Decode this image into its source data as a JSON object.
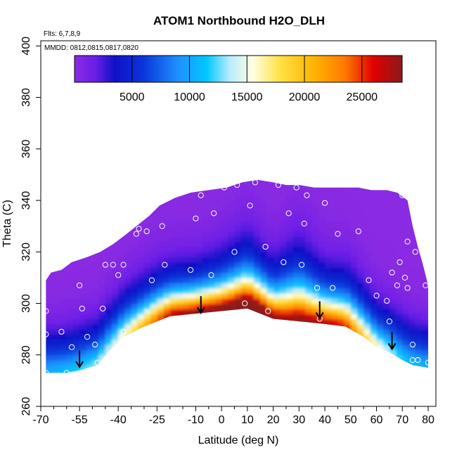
{
  "chart_data": {
    "type": "heatmap",
    "title": "ATOM1 Northbound H2O_DLH",
    "xlabel": "Latitude (deg N)",
    "ylabel": "Theta (C)",
    "xlim": [
      -70,
      83
    ],
    "ylim": [
      260,
      402
    ],
    "x_ticks": [
      -70,
      -55,
      -40,
      -25,
      -10,
      0,
      10,
      20,
      30,
      40,
      50,
      60,
      70,
      80
    ],
    "x_ticks_minor": [
      -65,
      -60,
      -50,
      -45,
      -35,
      -30,
      -20,
      -15,
      -5,
      5,
      15,
      25,
      35,
      45,
      55,
      65,
      75
    ],
    "y_ticks": [
      260,
      280,
      300,
      320,
      340,
      360,
      380,
      400
    ],
    "annotations": [
      "Flts: 6,7,8,9",
      "MMDD: 0812,0815,0817,0820"
    ],
    "colorbar": {
      "range": [
        0,
        28500
      ],
      "ticks": [
        5000,
        10000,
        15000,
        20000,
        25000
      ],
      "stops": [
        {
          "v": 0,
          "c": "#8a2be2"
        },
        {
          "v": 1800,
          "c": "#6a1ee6"
        },
        {
          "v": 3500,
          "c": "#1010c8"
        },
        {
          "v": 6000,
          "c": "#0a36d8"
        },
        {
          "v": 9000,
          "c": "#1e90ff"
        },
        {
          "v": 11500,
          "c": "#00c8ff"
        },
        {
          "v": 13500,
          "c": "#b8ecff"
        },
        {
          "v": 15500,
          "c": "#ffffe0"
        },
        {
          "v": 18000,
          "c": "#ffe040"
        },
        {
          "v": 21000,
          "c": "#ffb000"
        },
        {
          "v": 23500,
          "c": "#ff7a00"
        },
        {
          "v": 26000,
          "c": "#e00000"
        },
        {
          "v": 28500,
          "c": "#8b1a1a"
        }
      ]
    },
    "coverage": {
      "upper": [
        [
          -68,
          309
        ],
        [
          -66,
          312
        ],
        [
          -62,
          313
        ],
        [
          -58,
          316
        ],
        [
          -52,
          318
        ],
        [
          -47,
          320
        ],
        [
          -42,
          323
        ],
        [
          -38,
          326
        ],
        [
          -33,
          330
        ],
        [
          -28,
          334
        ],
        [
          -24,
          338
        ],
        [
          -18,
          341
        ],
        [
          -12,
          343
        ],
        [
          -5,
          344
        ],
        [
          2,
          345
        ],
        [
          8,
          347
        ],
        [
          14,
          348
        ],
        [
          20,
          347
        ],
        [
          25,
          346
        ],
        [
          30,
          346
        ],
        [
          36,
          345
        ],
        [
          42,
          345
        ],
        [
          48,
          345
        ],
        [
          53,
          345
        ],
        [
          58,
          344
        ],
        [
          64,
          344
        ],
        [
          68,
          343
        ],
        [
          72,
          340
        ],
        [
          74,
          330
        ],
        [
          76,
          322
        ],
        [
          78,
          315
        ],
        [
          80,
          307
        ]
      ],
      "lower": [
        [
          -68,
          273
        ],
        [
          -60,
          273
        ],
        [
          -55,
          274
        ],
        [
          -48,
          276
        ],
        [
          -44,
          281
        ],
        [
          -38,
          287
        ],
        [
          -30,
          291
        ],
        [
          -20,
          295
        ],
        [
          -10,
          296
        ],
        [
          0,
          297
        ],
        [
          10,
          298
        ],
        [
          20,
          294
        ],
        [
          30,
          293
        ],
        [
          40,
          292
        ],
        [
          48,
          291
        ],
        [
          55,
          287
        ],
        [
          60,
          283
        ],
        [
          65,
          281
        ],
        [
          70,
          278
        ],
        [
          74,
          276
        ],
        [
          80,
          275
        ]
      ]
    },
    "points": [
      [
        -68,
        297
      ],
      [
        -68,
        288
      ],
      [
        -68,
        273
      ],
      [
        -62,
        289
      ],
      [
        -60,
        273
      ],
      [
        -58,
        283
      ],
      [
        -55,
        307
      ],
      [
        -54,
        298
      ],
      [
        -52,
        287
      ],
      [
        -49,
        284
      ],
      [
        -48,
        277
      ],
      [
        -46,
        298
      ],
      [
        -45,
        315
      ],
      [
        -42,
        315
      ],
      [
        -40,
        311
      ],
      [
        -38,
        289
      ],
      [
        -38,
        315
      ],
      [
        -33,
        327
      ],
      [
        -32,
        329
      ],
      [
        -29,
        328
      ],
      [
        -27,
        309
      ],
      [
        -24,
        341
      ],
      [
        -23,
        330
      ],
      [
        -22,
        315
      ],
      [
        -16,
        343
      ],
      [
        -12,
        313
      ],
      [
        -10,
        333
      ],
      [
        -8,
        342
      ],
      [
        -4,
        311
      ],
      [
        -3,
        335
      ],
      [
        1,
        345
      ],
      [
        3,
        296
      ],
      [
        5,
        320
      ],
      [
        6,
        346
      ],
      [
        9,
        300
      ],
      [
        11,
        338
      ],
      [
        13,
        347
      ],
      [
        17,
        322
      ],
      [
        18,
        297
      ],
      [
        22,
        346
      ],
      [
        24,
        316
      ],
      [
        26,
        335
      ],
      [
        29,
        345
      ],
      [
        31,
        315
      ],
      [
        32,
        331
      ],
      [
        33,
        342
      ],
      [
        37,
        306
      ],
      [
        38,
        294
      ],
      [
        40,
        339
      ],
      [
        43,
        306
      ],
      [
        45,
        327
      ],
      [
        53,
        328
      ],
      [
        57,
        309
      ],
      [
        60,
        303
      ],
      [
        64,
        301
      ],
      [
        65,
        293
      ],
      [
        66,
        312
      ],
      [
        68,
        307
      ],
      [
        69,
        316
      ],
      [
        70,
        342
      ],
      [
        71,
        310
      ],
      [
        72,
        306
      ],
      [
        72,
        324
      ],
      [
        74,
        284
      ],
      [
        74,
        278
      ],
      [
        75,
        320
      ],
      [
        76,
        278
      ],
      [
        79,
        307
      ],
      [
        80,
        277
      ]
    ],
    "arrows": [
      {
        "x": -55,
        "theta": 278
      },
      {
        "x": -8,
        "theta": 299
      },
      {
        "x": 38,
        "theta": 297
      },
      {
        "x": 66,
        "theta": 285
      }
    ]
  }
}
